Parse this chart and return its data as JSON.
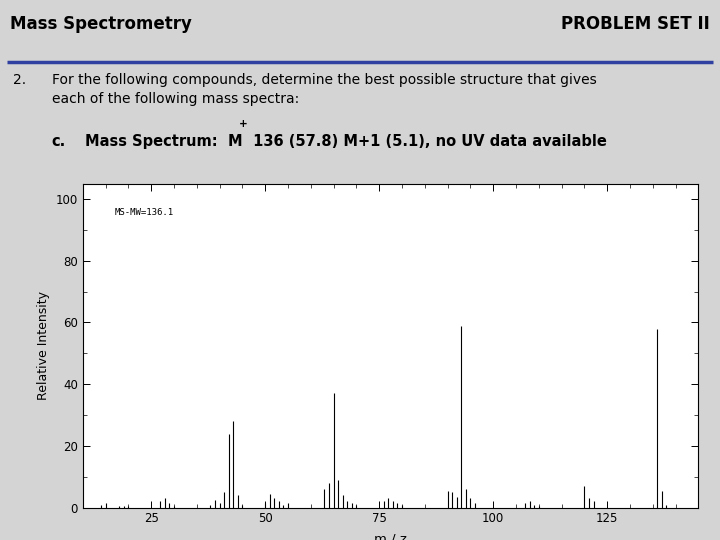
{
  "title_left": "Mass Spectrometry",
  "title_right": "PROBLEM SET II",
  "annotation": "MS-MW=136.1",
  "ylabel": "Relative Intensity",
  "xlabel": "m / z",
  "xlim": [
    10,
    145
  ],
  "ylim": [
    0,
    105
  ],
  "yticks": [
    0,
    20,
    40,
    60,
    80,
    100
  ],
  "xticks": [
    25,
    50,
    75,
    100,
    125
  ],
  "peaks": [
    [
      14,
      1
    ],
    [
      15,
      1.5
    ],
    [
      18,
      0.5
    ],
    [
      19,
      0.5
    ],
    [
      20,
      0.5
    ],
    [
      27,
      2
    ],
    [
      28,
      3
    ],
    [
      29,
      1.5
    ],
    [
      30,
      0.5
    ],
    [
      38,
      1
    ],
    [
      39,
      2.5
    ],
    [
      40,
      1.5
    ],
    [
      41,
      5
    ],
    [
      42,
      24
    ],
    [
      43,
      28
    ],
    [
      44,
      4
    ],
    [
      45,
      1
    ],
    [
      50,
      1.5
    ],
    [
      51,
      4.5
    ],
    [
      52,
      3
    ],
    [
      53,
      2
    ],
    [
      54,
      1
    ],
    [
      55,
      1.5
    ],
    [
      63,
      6
    ],
    [
      64,
      8
    ],
    [
      65,
      37
    ],
    [
      66,
      9
    ],
    [
      67,
      4
    ],
    [
      68,
      2
    ],
    [
      69,
      1.5
    ],
    [
      70,
      1
    ],
    [
      76,
      2
    ],
    [
      77,
      3
    ],
    [
      78,
      2
    ],
    [
      79,
      1.5
    ],
    [
      80,
      1
    ],
    [
      90,
      5.5
    ],
    [
      91,
      5
    ],
    [
      92,
      3.5
    ],
    [
      93,
      59
    ],
    [
      94,
      6
    ],
    [
      95,
      3
    ],
    [
      96,
      1.5
    ],
    [
      107,
      1.5
    ],
    [
      108,
      2
    ],
    [
      109,
      1
    ],
    [
      110,
      0.5
    ],
    [
      120,
      7
    ],
    [
      121,
      3
    ],
    [
      122,
      2
    ],
    [
      136,
      58
    ],
    [
      137,
      5.5
    ],
    [
      138,
      1
    ]
  ],
  "background_color": "#d4d4d4",
  "plot_bg_color": "#ffffff",
  "line_color": "#000000",
  "header_line_color": "#3040a0",
  "header_bg": "#c8c8c8"
}
